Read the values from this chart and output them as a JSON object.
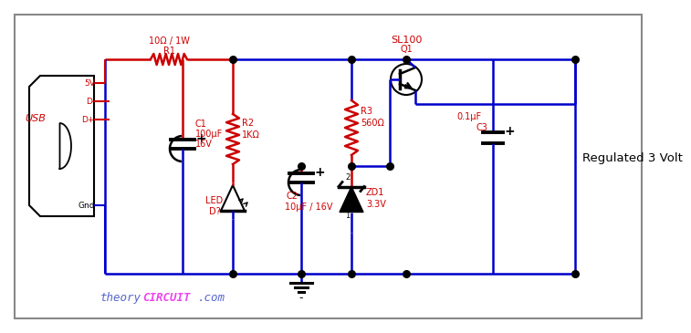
{
  "bg_color": "#ffffff",
  "border_color": "#888888",
  "wire_color": "#0000cc",
  "red_color": "#cc0000",
  "black_color": "#000000",
  "theory_color": "#5566cc",
  "circuit_color": "#ee44ee",
  "regulated_label": "Regulated 3 Volt",
  "usb_label": "USB",
  "r1_label": "R1",
  "r1_val": "10Ω / 1W",
  "r2_label": "R2",
  "r2_val": "1KΩ",
  "r3_label": "R3",
  "r3_val": "560Ω",
  "c1_label": "C1",
  "c1_val": "100μF",
  "c1_v": "16V",
  "c2_label": "C2",
  "c2_val": "10μF / 16V",
  "c3_label": "C3",
  "c3_val": "0.1μF",
  "led_label": "LED",
  "led_d": "D?",
  "zd1_label": "ZD1",
  "zd1_val": "3.3V",
  "q1_label": "Q1",
  "q1_val": "SL100",
  "usb_5v": "5V",
  "usb_dm": "D-",
  "usb_dp": "D+",
  "usb_gnd": "Gnd"
}
